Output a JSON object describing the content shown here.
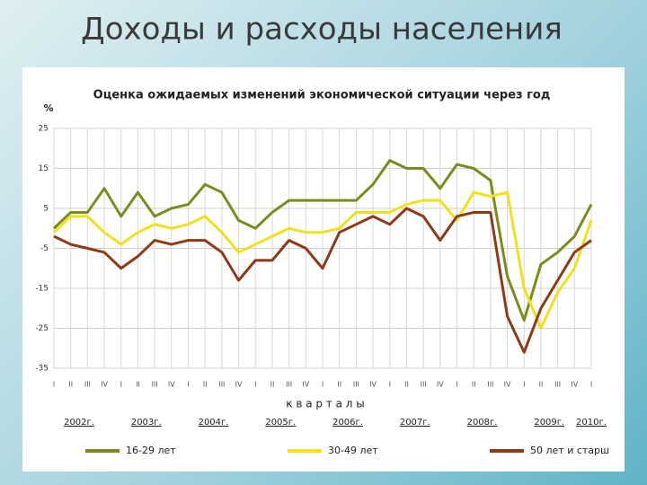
{
  "slide_title": "Доходы и расходы населения",
  "chart_data": {
    "type": "line",
    "title": "Оценка ожидаемых изменений экономической ситуации через год",
    "y_label": "%",
    "x_label": "к в а р т а л ы",
    "categories": [
      "I",
      "II",
      "III",
      "IV",
      "I",
      "II",
      "III",
      "IV",
      "I",
      "II",
      "III",
      "IV",
      "I",
      "II",
      "III",
      "IV",
      "I",
      "II",
      "III",
      "IV",
      "I",
      "II",
      "III",
      "IV",
      "I",
      "II",
      "III",
      "IV",
      "I",
      "II",
      "III",
      "IV",
      "I"
    ],
    "year_labels": [
      "2002г.",
      "2003г.",
      "2004г.",
      "2005г.",
      "2006г.",
      "2007г.",
      "2008г.",
      "2009г.",
      "2010г."
    ],
    "ylim": [
      -35,
      25
    ],
    "yticks": [
      25,
      15,
      5,
      -5,
      -15,
      -25,
      -35
    ],
    "grid": true,
    "series": [
      {
        "name": "16-29 лет",
        "color": "#7b8c1f",
        "values": [
          0,
          4,
          4,
          10,
          3,
          9,
          3,
          5,
          6,
          11,
          9,
          2,
          0,
          4,
          7,
          7,
          7,
          7,
          7,
          11,
          17,
          15,
          15,
          10,
          16,
          15,
          12,
          -12,
          -23,
          -9,
          -6,
          -2,
          6
        ]
      },
      {
        "name": "30-49 лет",
        "color": "#f2e01c",
        "values": [
          -1,
          3,
          3,
          -1,
          -4,
          -1,
          1,
          0,
          1,
          3,
          -1,
          -6,
          -4,
          -2,
          0,
          -1,
          -1,
          0,
          4,
          4,
          4,
          6,
          7,
          7,
          2,
          9,
          8,
          9,
          -15,
          -25,
          -16,
          -10,
          2
        ]
      },
      {
        "name": "50 лет и старш",
        "color": "#8e3a17",
        "values": [
          -2,
          -4,
          -5,
          -6,
          -10,
          -7,
          -3,
          -4,
          -3,
          -3,
          -6,
          -13,
          -8,
          -8,
          -3,
          -5,
          -10,
          -1,
          1,
          3,
          1,
          5,
          3,
          -3,
          3,
          4,
          4,
          -22,
          -31,
          -20,
          -13,
          -6,
          -3
        ]
      }
    ]
  }
}
